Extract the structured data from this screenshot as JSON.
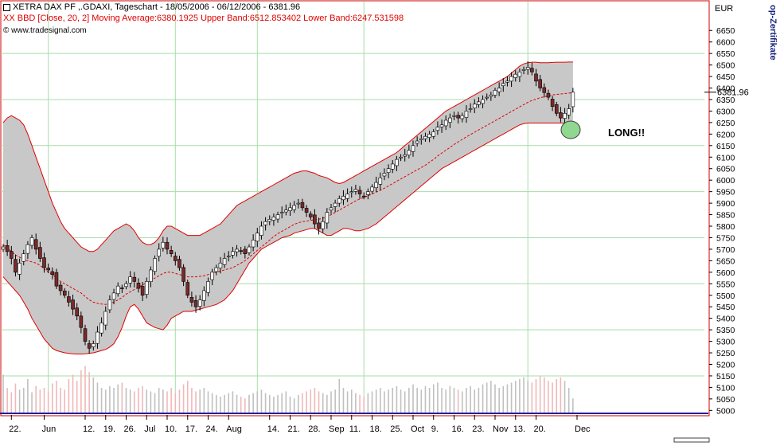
{
  "header": {
    "title": "XETRA DAX PF ,.GDAXI, Tageschart - 18/05/2006 - 06/12/2006 - 6381.96",
    "indicator": "XX BBD [Close, 20, 2] Moving Average:6380.1925 Upper Band:6512.853402 Lower Band:6247.531598",
    "copyright": "© www.tradesignal.com",
    "currency": "EUR",
    "side_label": "op-Zertifikate"
  },
  "annotation": {
    "text": "LONG!!"
  },
  "colors": {
    "frame": "#d00000",
    "band_fill": "#c8c8c8",
    "band_line": "#e00000",
    "grid": "#a8dca8",
    "candle": "#000000",
    "bear_body": "#7a2a2a",
    "volume_up": "#c0c0c0",
    "volume_down": "#f0b8b8",
    "circle_fill": "#90d890",
    "price_tag_line": "#000000"
  },
  "chart_data": {
    "type": "candlestick",
    "title": "XETRA DAX PF ,.GDAXI, Tageschart - 18/05/2006 - 06/12/2006 - 6381.96",
    "ylabel": "EUR",
    "ylim": [
      4970,
      6720
    ],
    "y_ticks": [
      5000,
      5050,
      5100,
      5150,
      5200,
      5250,
      5300,
      5350,
      5400,
      5450,
      5500,
      5550,
      5600,
      5650,
      5700,
      5750,
      5800,
      5850,
      5900,
      5950,
      6000,
      6050,
      6100,
      6150,
      6200,
      6250,
      6300,
      6350,
      6400,
      6450,
      6500,
      6550,
      6600,
      6650
    ],
    "last_value": "6381.96",
    "x_labels": [
      "22.",
      "Jun",
      "12.",
      "19.",
      "26.",
      "Jul",
      "10.",
      "17.",
      "24.",
      "Aug",
      "14.",
      "21.",
      "28.",
      "Sep",
      "11.",
      "18.",
      "25.",
      "Oct",
      "9.",
      "16.",
      "23.",
      "Nov",
      "13.",
      "20.",
      "Dec"
    ],
    "x_label_index": [
      2,
      10,
      20,
      25,
      30,
      35,
      40,
      45,
      50,
      55,
      65,
      70,
      75,
      80,
      85,
      90,
      95,
      100,
      105,
      110,
      115,
      120,
      125,
      130,
      140
    ],
    "grid": true,
    "close": [
      5710,
      5690,
      5660,
      5600,
      5640,
      5680,
      5720,
      5750,
      5700,
      5660,
      5620,
      5610,
      5590,
      5540,
      5520,
      5500,
      5470,
      5440,
      5410,
      5360,
      5300,
      5270,
      5290,
      5340,
      5380,
      5430,
      5480,
      5510,
      5540,
      5530,
      5550,
      5580,
      5560,
      5530,
      5500,
      5560,
      5610,
      5660,
      5700,
      5730,
      5700,
      5680,
      5650,
      5620,
      5560,
      5500,
      5470,
      5450,
      5480,
      5520,
      5560,
      5600,
      5620,
      5640,
      5660,
      5670,
      5690,
      5700,
      5690,
      5680,
      5710,
      5740,
      5770,
      5800,
      5820,
      5830,
      5840,
      5850,
      5860,
      5870,
      5880,
      5890,
      5900,
      5880,
      5860,
      5840,
      5810,
      5790,
      5820,
      5860,
      5880,
      5900,
      5920,
      5930,
      5940,
      5950,
      5960,
      5940,
      5930,
      5950,
      5970,
      5990,
      6010,
      6030,
      6050,
      6070,
      6090,
      6100,
      6110,
      6130,
      6150,
      6170,
      6180,
      6190,
      6200,
      6210,
      6230,
      6240,
      6260,
      6270,
      6280,
      6270,
      6280,
      6300,
      6310,
      6330,
      6340,
      6350,
      6360,
      6370,
      6390,
      6400,
      6420,
      6430,
      6450,
      6460,
      6470,
      6480,
      6490,
      6470,
      6430,
      6400,
      6380,
      6360,
      6320,
      6290,
      6270,
      6290,
      6310,
      6382
    ],
    "ma": [
      5720,
      5705,
      5690,
      5675,
      5665,
      5655,
      5650,
      5645,
      5640,
      5630,
      5615,
      5600,
      5590,
      5575,
      5560,
      5550,
      5540,
      5530,
      5520,
      5510,
      5495,
      5480,
      5470,
      5465,
      5462,
      5460,
      5465,
      5470,
      5480,
      5490,
      5505,
      5515,
      5525,
      5535,
      5545,
      5555,
      5565,
      5575,
      5585,
      5595,
      5600,
      5600,
      5595,
      5590,
      5585,
      5580,
      5580,
      5580,
      5582,
      5585,
      5590,
      5595,
      5600,
      5605,
      5610,
      5615,
      5620,
      5630,
      5640,
      5650,
      5665,
      5680,
      5695,
      5710,
      5725,
      5740,
      5755,
      5768,
      5778,
      5788,
      5798,
      5808,
      5815,
      5820,
      5822,
      5825,
      5828,
      5830,
      5835,
      5840,
      5850,
      5860,
      5870,
      5880,
      5890,
      5900,
      5910,
      5918,
      5925,
      5932,
      5940,
      5948,
      5956,
      5965,
      5975,
      5985,
      5995,
      6005,
      6015,
      6025,
      6035,
      6045,
      6055,
      6065,
      6078,
      6090,
      6105,
      6118,
      6130,
      6142,
      6155,
      6166,
      6177,
      6188,
      6198,
      6208,
      6218,
      6228,
      6238,
      6248,
      6258,
      6268,
      6278,
      6288,
      6298,
      6308,
      6318,
      6328,
      6338,
      6346,
      6352,
      6358,
      6362,
      6366,
      6370,
      6372,
      6374,
      6376,
      6378,
      6380
    ],
    "upper": [
      6250,
      6270,
      6280,
      6270,
      6260,
      6240,
      6200,
      6150,
      6100,
      6050,
      6000,
      5950,
      5900,
      5860,
      5820,
      5790,
      5770,
      5750,
      5730,
      5710,
      5700,
      5690,
      5690,
      5700,
      5720,
      5740,
      5760,
      5780,
      5790,
      5800,
      5810,
      5800,
      5780,
      5750,
      5730,
      5720,
      5720,
      5730,
      5750,
      5780,
      5800,
      5800,
      5790,
      5780,
      5770,
      5760,
      5760,
      5760,
      5760,
      5770,
      5780,
      5790,
      5800,
      5810,
      5830,
      5850,
      5870,
      5890,
      5900,
      5910,
      5920,
      5930,
      5940,
      5950,
      5960,
      5970,
      5980,
      5990,
      6000,
      6010,
      6020,
      6030,
      6035,
      6040,
      6040,
      6035,
      6030,
      6020,
      6015,
      6010,
      6000,
      5990,
      5985,
      5990,
      6000,
      6010,
      6020,
      6030,
      6040,
      6050,
      6060,
      6070,
      6080,
      6090,
      6100,
      6110,
      6120,
      6135,
      6150,
      6165,
      6180,
      6195,
      6210,
      6225,
      6240,
      6255,
      6270,
      6285,
      6300,
      6310,
      6320,
      6330,
      6340,
      6350,
      6360,
      6370,
      6380,
      6390,
      6400,
      6410,
      6420,
      6430,
      6440,
      6450,
      6465,
      6480,
      6495,
      6505,
      6510,
      6512,
      6512,
      6510,
      6510,
      6510,
      6511,
      6512,
      6512,
      6512,
      6513,
      6513
    ],
    "lower": [
      5580,
      5560,
      5540,
      5520,
      5500,
      5470,
      5440,
      5400,
      5370,
      5340,
      5310,
      5290,
      5270,
      5260,
      5255,
      5250,
      5248,
      5246,
      5245,
      5245,
      5246,
      5248,
      5250,
      5255,
      5260,
      5265,
      5275,
      5290,
      5320,
      5360,
      5410,
      5450,
      5460,
      5440,
      5410,
      5380,
      5370,
      5360,
      5355,
      5350,
      5370,
      5400,
      5410,
      5420,
      5430,
      5430,
      5430,
      5435,
      5440,
      5445,
      5450,
      5455,
      5460,
      5470,
      5480,
      5500,
      5520,
      5550,
      5580,
      5610,
      5640,
      5660,
      5680,
      5700,
      5710,
      5720,
      5730,
      5740,
      5750,
      5755,
      5760,
      5770,
      5775,
      5780,
      5785,
      5790,
      5790,
      5780,
      5770,
      5760,
      5760,
      5770,
      5780,
      5790,
      5790,
      5785,
      5780,
      5780,
      5785,
      5790,
      5800,
      5810,
      5825,
      5840,
      5855,
      5870,
      5885,
      5900,
      5915,
      5930,
      5945,
      5960,
      5975,
      5990,
      6005,
      6020,
      6035,
      6050,
      6060,
      6070,
      6080,
      6090,
      6100,
      6110,
      6120,
      6130,
      6140,
      6150,
      6160,
      6170,
      6180,
      6190,
      6200,
      6210,
      6220,
      6230,
      6240,
      6245,
      6248,
      6248,
      6248,
      6248,
      6248,
      6248,
      6248,
      6248,
      6248,
      6248,
      6248,
      6248
    ],
    "volume_scale": "relative",
    "volume": [
      0.45,
      0.3,
      0.25,
      0.35,
      0.28,
      0.3,
      0.4,
      0.25,
      0.32,
      0.28,
      0.3,
      0.26,
      0.35,
      0.38,
      0.3,
      0.28,
      0.4,
      0.45,
      0.38,
      0.5,
      0.55,
      0.48,
      0.42,
      0.36,
      0.3,
      0.28,
      0.32,
      0.3,
      0.34,
      0.36,
      0.3,
      0.28,
      0.26,
      0.3,
      0.32,
      0.28,
      0.26,
      0.24,
      0.3,
      0.28,
      0.26,
      0.3,
      0.24,
      0.28,
      0.34,
      0.38,
      0.3,
      0.26,
      0.28,
      0.3,
      0.26,
      0.24,
      0.22,
      0.2,
      0.22,
      0.24,
      0.26,
      0.22,
      0.2,
      0.18,
      0.22,
      0.24,
      0.26,
      0.28,
      0.24,
      0.22,
      0.2,
      0.22,
      0.24,
      0.26,
      0.2,
      0.18,
      0.22,
      0.24,
      0.26,
      0.28,
      0.3,
      0.26,
      0.24,
      0.22,
      0.26,
      0.28,
      0.4,
      0.3,
      0.26,
      0.28,
      0.24,
      0.22,
      0.2,
      0.24,
      0.26,
      0.28,
      0.3,
      0.26,
      0.28,
      0.3,
      0.32,
      0.28,
      0.26,
      0.3,
      0.34,
      0.3,
      0.28,
      0.32,
      0.3,
      0.34,
      0.36,
      0.3,
      0.28,
      0.32,
      0.3,
      0.28,
      0.26,
      0.3,
      0.32,
      0.28,
      0.3,
      0.34,
      0.36,
      0.38,
      0.34,
      0.3,
      0.32,
      0.34,
      0.36,
      0.38,
      0.4,
      0.42,
      0.38,
      0.36,
      0.4,
      0.44,
      0.42,
      0.38,
      0.36,
      0.4,
      0.42,
      0.38,
      0.3,
      0.18
    ]
  }
}
